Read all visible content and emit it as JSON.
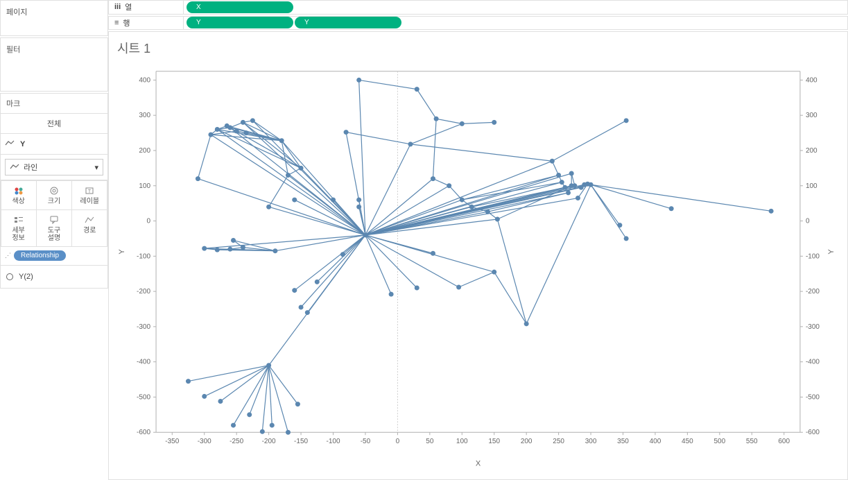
{
  "left_panels": {
    "pages_title": "페이지",
    "filters_title": "필터",
    "marks_title": "마크",
    "marks_all": "전체",
    "marks_y_label": "Y",
    "mark_type_select": "라인",
    "mark_cards": [
      {
        "label": "색상",
        "icon": "color"
      },
      {
        "label": "크기",
        "icon": "size"
      },
      {
        "label": "레이블",
        "icon": "label"
      },
      {
        "label": "세부\n정보",
        "icon": "detail"
      },
      {
        "label": "도구\n설명",
        "icon": "tooltip"
      },
      {
        "label": "경로",
        "icon": "path"
      }
    ],
    "relationship_pill": "Relationship",
    "y2_label": "Y(2)"
  },
  "shelves": {
    "columns_label": "열",
    "rows_label": "행",
    "column_pills": [
      "X"
    ],
    "row_pills": [
      "Y",
      "Y"
    ]
  },
  "chart": {
    "title": "시트 1",
    "type": "network",
    "x_label": "X",
    "y_label_left": "Y",
    "y_label_right": "Y",
    "xlim": [
      -375,
      625
    ],
    "ylim": [
      -600,
      425
    ],
    "x_ticks": [
      -350,
      -300,
      -250,
      -200,
      -150,
      -100,
      -50,
      0,
      50,
      100,
      150,
      200,
      250,
      300,
      350,
      400,
      450,
      500,
      550,
      600
    ],
    "y_ticks": [
      -600,
      -500,
      -400,
      -300,
      -200,
      -100,
      0,
      100,
      200,
      300,
      400
    ],
    "line_color": "#5b87b0",
    "dot_color": "#5b87b0",
    "dot_radius": 3.5,
    "zero_line_color": "#cccccc",
    "axis_color": "#b0b0b0",
    "background_color": "#ffffff",
    "hub": [
      -50,
      -40
    ],
    "nodes": [
      [
        -50,
        -40
      ],
      [
        -310,
        120
      ],
      [
        -290,
        245
      ],
      [
        -280,
        260
      ],
      [
        -260,
        265
      ],
      [
        -240,
        280
      ],
      [
        -225,
        285
      ],
      [
        -250,
        255
      ],
      [
        -235,
        250
      ],
      [
        -265,
        270
      ],
      [
        -180,
        228
      ],
      [
        -150,
        150
      ],
      [
        -170,
        130
      ],
      [
        -200,
        40
      ],
      [
        -300,
        -78
      ],
      [
        -280,
        -82
      ],
      [
        -260,
        -80
      ],
      [
        -240,
        -75
      ],
      [
        -255,
        -55
      ],
      [
        -190,
        -85
      ],
      [
        -160,
        60
      ],
      [
        -100,
        60
      ],
      [
        -60,
        60
      ],
      [
        -60,
        40
      ],
      [
        -80,
        252
      ],
      [
        -60,
        400
      ],
      [
        30,
        374
      ],
      [
        60,
        290
      ],
      [
        100,
        276
      ],
      [
        150,
        280
      ],
      [
        20,
        218
      ],
      [
        55,
        120
      ],
      [
        80,
        100
      ],
      [
        100,
        60
      ],
      [
        115,
        40
      ],
      [
        140,
        26
      ],
      [
        155,
        5
      ],
      [
        240,
        170
      ],
      [
        250,
        130
      ],
      [
        255,
        110
      ],
      [
        260,
        95
      ],
      [
        265,
        80
      ],
      [
        270,
        100
      ],
      [
        270,
        135
      ],
      [
        275,
        100
      ],
      [
        285,
        95
      ],
      [
        295,
        105
      ],
      [
        280,
        65
      ],
      [
        290,
        103
      ],
      [
        300,
        103
      ],
      [
        355,
        285
      ],
      [
        355,
        -50
      ],
      [
        345,
        -12
      ],
      [
        425,
        35
      ],
      [
        580,
        28
      ],
      [
        150,
        -145
      ],
      [
        95,
        -188
      ],
      [
        30,
        -190
      ],
      [
        55,
        -92
      ],
      [
        -85,
        -95
      ],
      [
        -125,
        -173
      ],
      [
        -160,
        -197
      ],
      [
        -150,
        -245
      ],
      [
        -140,
        -260
      ],
      [
        -200,
        -410
      ],
      [
        -155,
        -520
      ],
      [
        -170,
        -600
      ],
      [
        -195,
        -580
      ],
      [
        -210,
        -598
      ],
      [
        -230,
        -550
      ],
      [
        -255,
        -580
      ],
      [
        -275,
        -512
      ],
      [
        -300,
        -498
      ],
      [
        -325,
        -455
      ],
      [
        200,
        -292
      ],
      [
        -10,
        -208
      ]
    ],
    "node_edges_to_hub": [
      1,
      13,
      14,
      19,
      20,
      21,
      22,
      23,
      24,
      25,
      30,
      31,
      32,
      33,
      34,
      35,
      36,
      55,
      56,
      57,
      58,
      59,
      60,
      61,
      62,
      63,
      64,
      75
    ],
    "extra_edges": [
      [
        1,
        2
      ],
      [
        2,
        3
      ],
      [
        3,
        4
      ],
      [
        4,
        5
      ],
      [
        5,
        6
      ],
      [
        2,
        7
      ],
      [
        7,
        8
      ],
      [
        3,
        9
      ],
      [
        2,
        10
      ],
      [
        10,
        11
      ],
      [
        11,
        12
      ],
      [
        12,
        13
      ],
      [
        14,
        15
      ],
      [
        15,
        16
      ],
      [
        16,
        17
      ],
      [
        17,
        18
      ],
      [
        16,
        19
      ],
      [
        25,
        26
      ],
      [
        26,
        27
      ],
      [
        27,
        28
      ],
      [
        28,
        29
      ],
      [
        31,
        32
      ],
      [
        32,
        33
      ],
      [
        33,
        34
      ],
      [
        34,
        35
      ],
      [
        35,
        36
      ],
      [
        37,
        38
      ],
      [
        38,
        39
      ],
      [
        39,
        40
      ],
      [
        40,
        41
      ],
      [
        41,
        42
      ],
      [
        42,
        43
      ],
      [
        43,
        44
      ],
      [
        44,
        45
      ],
      [
        45,
        46
      ],
      [
        46,
        47
      ],
      [
        45,
        48
      ],
      [
        48,
        49
      ],
      [
        37,
        50
      ],
      [
        49,
        51
      ],
      [
        49,
        52
      ],
      [
        49,
        53
      ],
      [
        49,
        54
      ],
      [
        64,
        65
      ],
      [
        64,
        66
      ],
      [
        64,
        67
      ],
      [
        64,
        68
      ],
      [
        64,
        69
      ],
      [
        64,
        70
      ],
      [
        64,
        71
      ],
      [
        64,
        72
      ],
      [
        64,
        73
      ],
      [
        49,
        74
      ],
      [
        36,
        74
      ],
      [
        10,
        3
      ],
      [
        10,
        4
      ],
      [
        10,
        5
      ],
      [
        10,
        6
      ],
      [
        10,
        7
      ],
      [
        10,
        8
      ],
      [
        10,
        9
      ],
      [
        0,
        37
      ],
      [
        0,
        38
      ],
      [
        0,
        39
      ],
      [
        0,
        40
      ],
      [
        0,
        41
      ],
      [
        0,
        42
      ],
      [
        0,
        43
      ],
      [
        0,
        44
      ],
      [
        0,
        45
      ],
      [
        0,
        46
      ],
      [
        0,
        47
      ],
      [
        0,
        48
      ],
      [
        0,
        49
      ],
      [
        30,
        37
      ],
      [
        30,
        28
      ],
      [
        27,
        31
      ],
      [
        24,
        30
      ],
      [
        11,
        3
      ],
      [
        11,
        4
      ],
      [
        11,
        5
      ],
      [
        12,
        10
      ],
      [
        19,
        14
      ],
      [
        19,
        15
      ],
      [
        19,
        16
      ],
      [
        19,
        17
      ],
      [
        19,
        18
      ],
      [
        0,
        2
      ],
      [
        0,
        3
      ],
      [
        0,
        4
      ],
      [
        0,
        5
      ],
      [
        0,
        6
      ],
      [
        0,
        10
      ],
      [
        0,
        11
      ],
      [
        0,
        12
      ],
      [
        55,
        74
      ],
      [
        56,
        55
      ],
      [
        33,
        38
      ],
      [
        33,
        39
      ],
      [
        34,
        40
      ],
      [
        35,
        41
      ],
      [
        36,
        42
      ]
    ]
  }
}
